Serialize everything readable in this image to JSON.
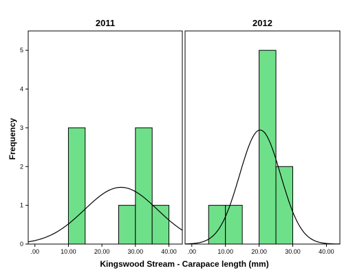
{
  "chart_data": {
    "type": "bar",
    "subtype": "histogram-with-normal-curve",
    "xlabel": "Kingswood Stream - Carapace length (mm)",
    "ylabel": "Frequency",
    "colors": {
      "bar_fill": "#6fe08a",
      "bar_stroke": "#000000",
      "curve": "#000000",
      "frame": "#000000"
    },
    "panels": [
      {
        "title": "2011",
        "xlim": [
          -2,
          44
        ],
        "ylim": [
          0,
          5.5
        ],
        "x_ticks": [
          0,
          10,
          20,
          30,
          40
        ],
        "x_tick_labels": [
          ".00",
          "10.00",
          "20.00",
          "30.00",
          "40.00"
        ],
        "y_ticks": [
          0,
          1,
          2,
          3,
          4,
          5
        ],
        "y_tick_labels": [
          "0",
          "1",
          "2",
          "3",
          "4",
          "5"
        ],
        "bars": [
          {
            "start": 10,
            "end": 15,
            "count": 3
          },
          {
            "start": 25,
            "end": 30,
            "count": 1
          },
          {
            "start": 30,
            "end": 35,
            "count": 3
          },
          {
            "start": 35,
            "end": 40,
            "count": 1
          }
        ],
        "normal_curve": {
          "mean": 25.7,
          "sd": 10.9,
          "n": 8,
          "bin_width": 5
        }
      },
      {
        "title": "2012",
        "xlim": [
          -2,
          44
        ],
        "ylim": [
          0,
          5.5
        ],
        "x_ticks": [
          0,
          10,
          20,
          30,
          40
        ],
        "x_tick_labels": [
          ".00",
          "10.00",
          "20.00",
          "30.00",
          "40.00"
        ],
        "y_ticks": [
          0,
          1,
          2,
          3,
          4,
          5
        ],
        "y_tick_labels": [
          "0",
          "1",
          "2",
          "3",
          "4",
          "5"
        ],
        "bars": [
          {
            "start": 5,
            "end": 10,
            "count": 1
          },
          {
            "start": 10,
            "end": 15,
            "count": 1
          },
          {
            "start": 20,
            "end": 25,
            "count": 5
          },
          {
            "start": 25,
            "end": 30,
            "count": 2
          }
        ],
        "normal_curve": {
          "mean": 20.3,
          "sd": 6.1,
          "n": 9,
          "bin_width": 5
        }
      }
    ]
  }
}
